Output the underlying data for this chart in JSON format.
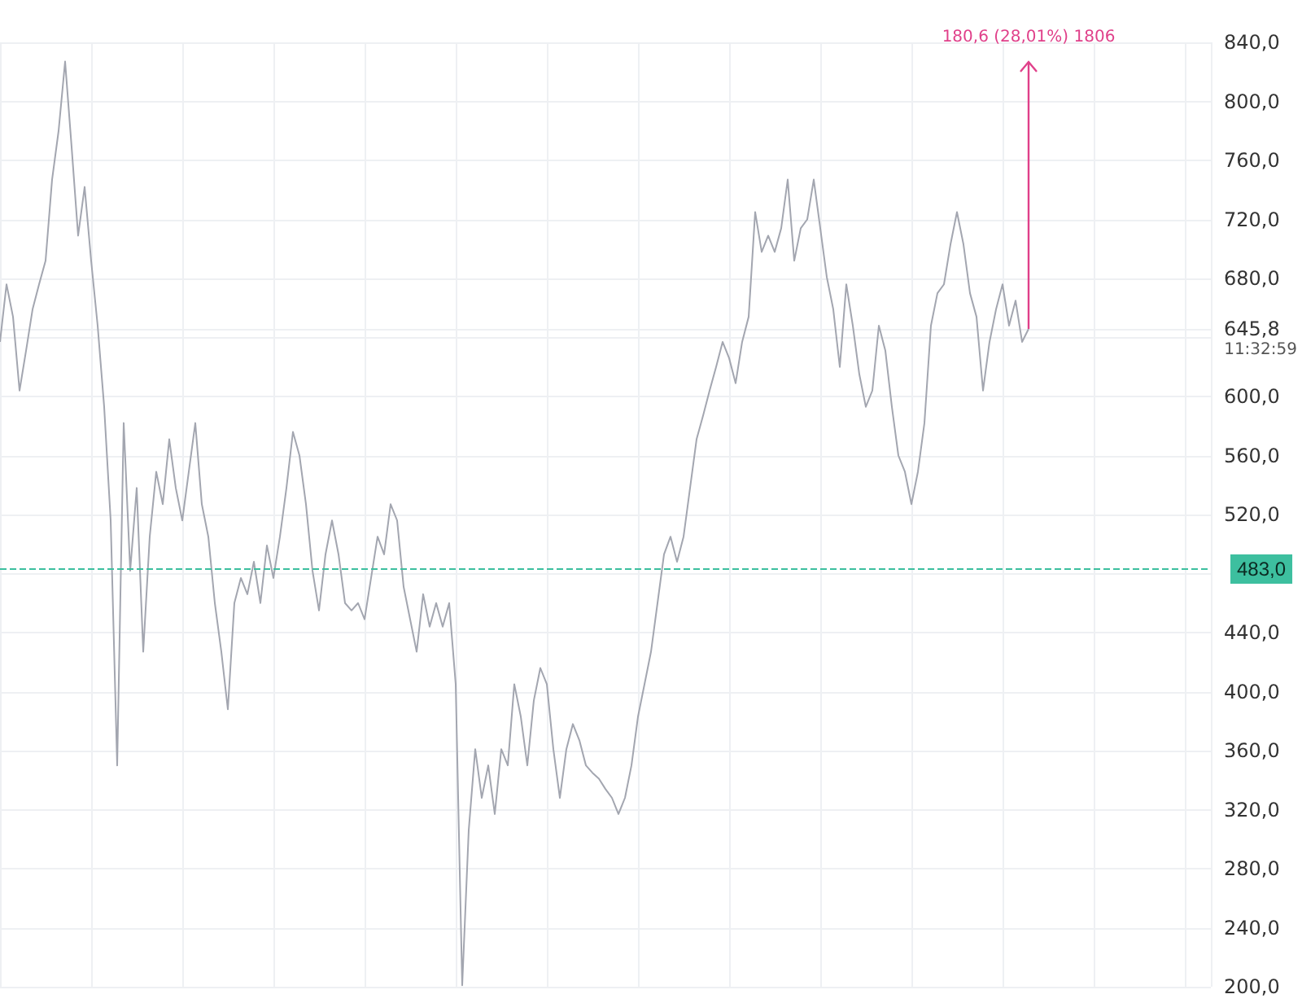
{
  "chart_data": {
    "type": "line",
    "categories": [
      null,
      null,
      null,
      null,
      null,
      null,
      null,
      null,
      null,
      null,
      null,
      null,
      null,
      null,
      null,
      null,
      null,
      null,
      null,
      null,
      null,
      null,
      null,
      null,
      null,
      null,
      null,
      null,
      null,
      null,
      null,
      null,
      null,
      null,
      null,
      null,
      null,
      null,
      null,
      null,
      null,
      null,
      null,
      null,
      null,
      null,
      null,
      null,
      null,
      null,
      null,
      null,
      null,
      null,
      null,
      null,
      null,
      null,
      null,
      null,
      null,
      null,
      null,
      null,
      null,
      null,
      null,
      null,
      null,
      null,
      null,
      null,
      null,
      null,
      null,
      null,
      null,
      null,
      null,
      null,
      null,
      null,
      null,
      null,
      null,
      null,
      null,
      null,
      null,
      null,
      null,
      null,
      null,
      null,
      null,
      null,
      null,
      null,
      null,
      null,
      null,
      null,
      null,
      null,
      null,
      null,
      null,
      null,
      null,
      null,
      null,
      null,
      null,
      null,
      null,
      null,
      null,
      null,
      null,
      null,
      null,
      null,
      null,
      null,
      null,
      null,
      null,
      null,
      null,
      null,
      null,
      null,
      null,
      null,
      null,
      null,
      null,
      null,
      null,
      null,
      null,
      null,
      null,
      null,
      null,
      null,
      null,
      null,
      null,
      null,
      null,
      null,
      null,
      null,
      null,
      null,
      null,
      null,
      null,
      null,
      null,
      null,
      null,
      null,
      null,
      null,
      null,
      null,
      null,
      null,
      null,
      null,
      null,
      null,
      null,
      null,
      null,
      null,
      null,
      null,
      null,
      null,
      null,
      null,
      null,
      null,
      null
    ],
    "series": [
      {
        "color": "#a3a6b0",
        "values": [
          637,
          676,
          654,
          604,
          631,
          659,
          676,
          692,
          747,
          780,
          827,
          769,
          709,
          742,
          692,
          648,
          593,
          516,
          350,
          582,
          482,
          538,
          427,
          505,
          549,
          527,
          571,
          538,
          516,
          549,
          582,
          527,
          505,
          460,
          427,
          388,
          460,
          477,
          466,
          488,
          460,
          499,
          477,
          505,
          538,
          576,
          560,
          527,
          482,
          455,
          493,
          516,
          493,
          460,
          455,
          460,
          449,
          477,
          505,
          493,
          527,
          516,
          471,
          449,
          427,
          466,
          444,
          460,
          444,
          460,
          405,
          201,
          306,
          361,
          328,
          350,
          317,
          361,
          350,
          405,
          383,
          350,
          394,
          416,
          405,
          361,
          328,
          361,
          378,
          367,
          350,
          345,
          341,
          334,
          328,
          317,
          328,
          350,
          383,
          405,
          427,
          460,
          493,
          505,
          488,
          505,
          538,
          571,
          587,
          604,
          620,
          637,
          626,
          609,
          637,
          654,
          725,
          698,
          709,
          698,
          714,
          747,
          692,
          714,
          720,
          747,
          714,
          681,
          659,
          620,
          676,
          648,
          615,
          593,
          604,
          648,
          631,
          593,
          560,
          549,
          527,
          549,
          582,
          648,
          670,
          676,
          703,
          725,
          703,
          670,
          654,
          604,
          637,
          659,
          676,
          648,
          665,
          637,
          645.8,
          null,
          null,
          null,
          null,
          null,
          null,
          null,
          null,
          null,
          null,
          null,
          null,
          null,
          null,
          null,
          null,
          null,
          null,
          null,
          null,
          null,
          null,
          null,
          null,
          null,
          null,
          null,
          null
        ]
      }
    ],
    "ylim": [
      200,
      840
    ],
    "yticks": [
      {
        "value": 200,
        "label": "200,0"
      },
      {
        "value": 240,
        "label": "240,0"
      },
      {
        "value": 280,
        "label": "280,0"
      },
      {
        "value": 320,
        "label": "320,0"
      },
      {
        "value": 360,
        "label": "360,0"
      },
      {
        "value": 400,
        "label": "400,0"
      },
      {
        "value": 440,
        "label": "440,0"
      },
      {
        "value": 480,
        "label": null
      },
      {
        "value": 520,
        "label": "520,0"
      },
      {
        "value": 560,
        "label": "560,0"
      },
      {
        "value": 600,
        "label": "600,0"
      },
      {
        "value": 640,
        "label": null
      },
      {
        "value": 645.8,
        "label": "645,8"
      },
      {
        "value": 680,
        "label": "680,0"
      },
      {
        "value": 720,
        "label": "720,0"
      },
      {
        "value": 760,
        "label": "760,0"
      },
      {
        "value": 800,
        "label": "800,0"
      },
      {
        "value": 840,
        "label": "840,0"
      }
    ],
    "ref_lines": [
      {
        "axis": "y",
        "value": 483,
        "label": "483,0",
        "color": "#3dbf9f",
        "line_style": "dashed"
      }
    ],
    "annotations": [
      "180,6 (28,01%) 1806",
      "11:32:59"
    ],
    "grid": true,
    "line_style": "solid",
    "tick_labels": "y"
  }
}
